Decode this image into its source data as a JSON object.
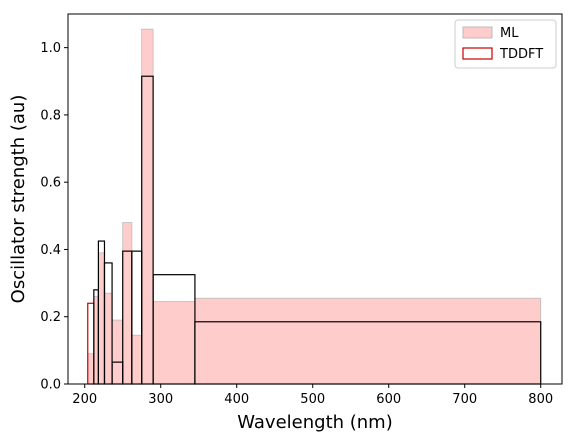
{
  "chart_data": {
    "type": "bar",
    "xlabel": "Wavelength (nm)",
    "ylabel": "Oscillator strength (au)",
    "xlim": [
      178,
      828
    ],
    "ylim": [
      0,
      1.1
    ],
    "xticks": [
      200,
      300,
      400,
      500,
      600,
      700,
      800
    ],
    "yticks": [
      0.0,
      0.2,
      0.4,
      0.6,
      0.8,
      1.0
    ],
    "legend_position": "top-right",
    "grid": false,
    "series": [
      {
        "name": "ML",
        "style": "filled",
        "color": "#ff9999",
        "bins": [
          {
            "x0": 204,
            "x1": 212,
            "value": 0.09
          },
          {
            "x0": 212,
            "x1": 218,
            "value": 0.26
          },
          {
            "x0": 218,
            "x1": 226,
            "value": 0.39
          },
          {
            "x0": 226,
            "x1": 236,
            "value": 0.27
          },
          {
            "x0": 236,
            "x1": 250,
            "value": 0.19
          },
          {
            "x0": 250,
            "x1": 262,
            "value": 0.48
          },
          {
            "x0": 262,
            "x1": 275,
            "value": 0.145
          },
          {
            "x0": 275,
            "x1": 290,
            "value": 1.055
          },
          {
            "x0": 290,
            "x1": 345,
            "value": 0.245
          },
          {
            "x0": 345,
            "x1": 800,
            "value": 0.255
          }
        ]
      },
      {
        "name": "TDDFT",
        "style": "step",
        "color": "#cc0000",
        "legend_color": "#cc0000",
        "step_color": "#000000",
        "bins": [
          {
            "x0": 204,
            "x1": 212,
            "value": 0.24
          },
          {
            "x0": 212,
            "x1": 218,
            "value": 0.28
          },
          {
            "x0": 218,
            "x1": 226,
            "value": 0.425
          },
          {
            "x0": 226,
            "x1": 236,
            "value": 0.36
          },
          {
            "x0": 236,
            "x1": 250,
            "value": 0.065
          },
          {
            "x0": 250,
            "x1": 262,
            "value": 0.395
          },
          {
            "x0": 262,
            "x1": 275,
            "value": 0.395
          },
          {
            "x0": 275,
            "x1": 290,
            "value": 0.915
          },
          {
            "x0": 290,
            "x1": 345,
            "value": 0.325
          },
          {
            "x0": 345,
            "x1": 800,
            "value": 0.185
          }
        ]
      }
    ]
  }
}
